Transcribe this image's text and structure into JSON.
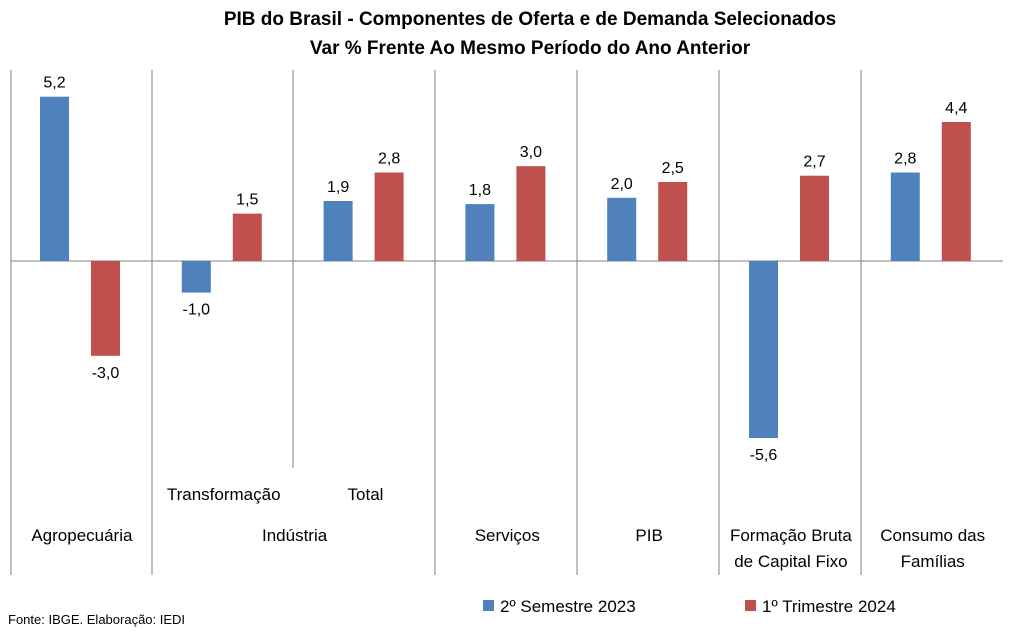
{
  "chart_data": {
    "type": "bar",
    "title": "PIB do Brasil - Componentes de Oferta e de Demanda Selecionados",
    "subtitle": "Var % Frente Ao Mesmo Período do Ano Anterior",
    "categories": [
      "Agropecuária",
      "Transformação",
      "Total",
      "Serviços",
      "PIB",
      "Formação Bruta de Capital Fixo",
      "Consumo das Famílias"
    ],
    "group_labels": [
      "Agropecuária",
      "Indústria",
      "Serviços",
      "PIB",
      "Formação Bruta de Capital Fixo",
      "Consumo das Famílias"
    ],
    "sub_labels": [
      "",
      "Transformação",
      "Total",
      "",
      "",
      "",
      ""
    ],
    "series": [
      {
        "name": "2º Semestre 2023",
        "color": "#4f81bd",
        "values": [
          5.2,
          -1.0,
          1.9,
          1.8,
          2.0,
          -5.6,
          2.8
        ],
        "labels": [
          "5,2",
          "-1,0",
          "1,9",
          "1,8",
          "2,0",
          "-5,6",
          "2,8"
        ]
      },
      {
        "name": "1º Trimestre 2024",
        "color": "#c0504d",
        "values": [
          -3.0,
          1.5,
          2.8,
          3.0,
          2.5,
          2.7,
          4.4
        ],
        "labels": [
          "-3,0",
          "1,5",
          "2,8",
          "3,0",
          "2,5",
          "2,7",
          "4,4"
        ]
      }
    ],
    "ylim": [
      -6.5,
      6.0
    ],
    "grid": false,
    "legend_position": "bottom"
  },
  "source": "Fonte: IBGE. Elaboração: IEDI"
}
